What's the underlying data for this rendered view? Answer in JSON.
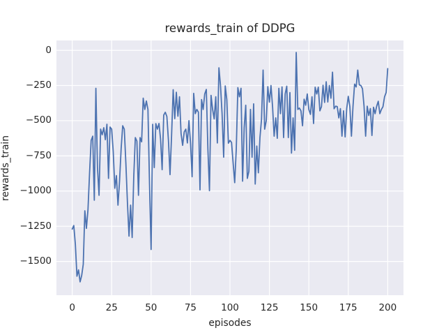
{
  "figure": {
    "background": "#ffffff"
  },
  "chart_data": {
    "type": "line",
    "title": "rewards_train of DDPG",
    "xlabel": "episodes",
    "ylabel": "rewards_train",
    "legend": "none",
    "grid": true,
    "style": "seaborn-darkgrid",
    "xlim": [
      -10,
      210
    ],
    "ylim": [
      -1740,
      70
    ],
    "x_ticks": [
      0,
      25,
      50,
      75,
      100,
      125,
      150,
      175,
      200
    ],
    "x_tick_labels": [
      "0",
      "25",
      "50",
      "75",
      "100",
      "125",
      "150",
      "175",
      "200"
    ],
    "y_ticks": [
      0,
      -250,
      -500,
      -750,
      -1000,
      -1250,
      -1500
    ],
    "y_tick_labels": [
      "0",
      "−250",
      "−500",
      "−750",
      "−1000",
      "−1250",
      "−1500"
    ],
    "x_start": 0,
    "x_step": 1,
    "series": [
      {
        "name": "rewards_train",
        "color": "#4c72b0",
        "values": [
          -1270,
          -1245,
          -1380,
          -1605,
          -1560,
          -1645,
          -1600,
          -1520,
          -1140,
          -1265,
          -1130,
          -870,
          -640,
          -610,
          -1065,
          -270,
          -830,
          -1030,
          -560,
          -600,
          -550,
          -635,
          -525,
          -910,
          -545,
          -560,
          -720,
          -980,
          -890,
          -1100,
          -930,
          -700,
          -536,
          -560,
          -800,
          -1080,
          -1320,
          -1100,
          -1330,
          -900,
          -620,
          -645,
          -1030,
          -620,
          -650,
          -340,
          -420,
          -360,
          -420,
          -950,
          -1415,
          -526,
          -833,
          -521,
          -560,
          -520,
          -630,
          -848,
          -460,
          -440,
          -470,
          -640,
          -883,
          -600,
          -280,
          -485,
          -298,
          -468,
          -330,
          -592,
          -675,
          -580,
          -560,
          -658,
          -500,
          -660,
          -898,
          -306,
          -450,
          -420,
          -440,
          -992,
          -350,
          -420,
          -310,
          -278,
          -700,
          -997,
          -320,
          -420,
          -487,
          -330,
          -658,
          -124,
          -250,
          -450,
          -759,
          -253,
          -350,
          -660,
          -640,
          -655,
          -800,
          -940,
          -700,
          -265,
          -330,
          -270,
          -930,
          -550,
          -390,
          -910,
          -860,
          -420,
          -760,
          -380,
          -950,
          -680,
          -870,
          -620,
          -490,
          -140,
          -560,
          -500,
          -258,
          -368,
          -250,
          -400,
          -610,
          -480,
          -625,
          -270,
          -450,
          -260,
          -620,
          -310,
          -255,
          -620,
          -300,
          -730,
          -480,
          -710,
          -15,
          -420,
          -410,
          -430,
          -536,
          -347,
          -390,
          -310,
          -420,
          -455,
          -330,
          -520,
          -262,
          -310,
          -262,
          -430,
          -400,
          -248,
          -370,
          -223,
          -367,
          -250,
          -340,
          -155,
          -415,
          -397,
          -400,
          -480,
          -414,
          -610,
          -430,
          -615,
          -414,
          -327,
          -400,
          -610,
          -397,
          -240,
          -260,
          -140,
          -245,
          -250,
          -273,
          -397,
          -610,
          -397,
          -463,
          -414,
          -605,
          -404,
          -450,
          -397,
          -362,
          -450,
          -420,
          -400,
          -330,
          -300,
          -130
        ]
      }
    ],
    "colors": {
      "axes_background": "#eaeaf2",
      "gridline": "#ffffff",
      "line": "#4c72b0",
      "text": "#262626",
      "figure_background": "#ffffff"
    }
  }
}
